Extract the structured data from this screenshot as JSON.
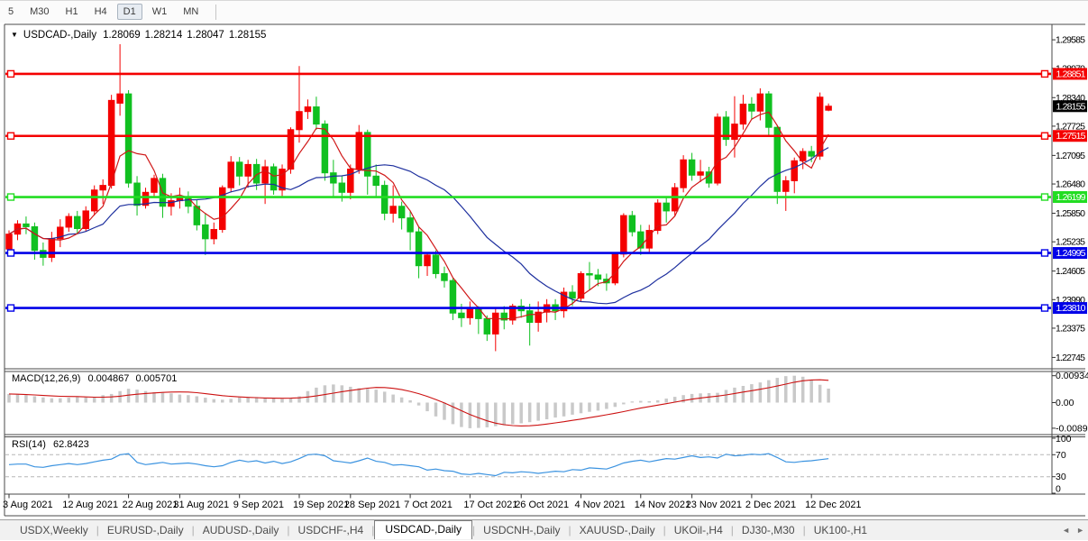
{
  "toolbar": {
    "timeframes": [
      "5",
      "M30",
      "H1",
      "H4",
      "D1",
      "W1",
      "MN"
    ],
    "active_timeframe": "D1"
  },
  "chart_header": {
    "collapse_icon": "▼",
    "symbol_label": "USDCAD-,Daily",
    "open": "1.28069",
    "high": "1.28214",
    "low": "1.28047",
    "close": "1.28155"
  },
  "chart_data": {
    "type": "candlestick",
    "title": "USDCAD-,Daily",
    "price_range": [
      1.2252,
      1.2984
    ],
    "y_axis_ticks": [
      "1.29585",
      "1.28970",
      "1.28340",
      "1.27725",
      "1.27095",
      "1.26480",
      "1.25850",
      "1.25235",
      "1.24605",
      "1.23990",
      "1.23375",
      "1.22745"
    ],
    "current_price": {
      "label": "1.28155",
      "price": 1.28155
    },
    "horizontal_lines": [
      {
        "label": "1.28851",
        "price": 1.28851,
        "color": "#f40000"
      },
      {
        "label": "1.27515",
        "price": 1.27515,
        "color": "#f40000"
      },
      {
        "label": "1.26199",
        "price": 1.26199,
        "color": "#22dd22"
      },
      {
        "label": "1.24995",
        "price": 1.24995,
        "color": "#0202e8"
      },
      {
        "label": "1.23810",
        "price": 1.2381,
        "color": "#0202e8"
      }
    ],
    "x_axis_labels": [
      {
        "label": "3 Aug 2021",
        "i": 0
      },
      {
        "label": "12 Aug 2021",
        "i": 7
      },
      {
        "label": "22 Aug 2021",
        "i": 14
      },
      {
        "label": "31 Aug 2021",
        "i": 20
      },
      {
        "label": "9 Sep 2021",
        "i": 27
      },
      {
        "label": "19 Sep 2021",
        "i": 34
      },
      {
        "label": "28 Sep 2021",
        "i": 40
      },
      {
        "label": "7 Oct 2021",
        "i": 47
      },
      {
        "label": "17 Oct 2021",
        "i": 54
      },
      {
        "label": "26 Oct 2021",
        "i": 60
      },
      {
        "label": "4 Nov 2021",
        "i": 67
      },
      {
        "label": "14 Nov 2021",
        "i": 74
      },
      {
        "label": "23 Nov 2021",
        "i": 80
      },
      {
        "label": "2 Dec 2021",
        "i": 87
      },
      {
        "label": "12 Dec 2021",
        "i": 94
      }
    ],
    "dates": [
      "2021-08-03",
      "2021-08-04",
      "2021-08-05",
      "2021-08-06",
      "2021-08-09",
      "2021-08-10",
      "2021-08-11",
      "2021-08-12",
      "2021-08-13",
      "2021-08-16",
      "2021-08-17",
      "2021-08-18",
      "2021-08-19",
      "2021-08-20",
      "2021-08-23",
      "2021-08-24",
      "2021-08-25",
      "2021-08-26",
      "2021-08-27",
      "2021-08-30",
      "2021-08-31",
      "2021-09-01",
      "2021-09-02",
      "2021-09-03",
      "2021-09-06",
      "2021-09-07",
      "2021-09-08",
      "2021-09-09",
      "2021-09-10",
      "2021-09-13",
      "2021-09-14",
      "2021-09-15",
      "2021-09-16",
      "2021-09-17",
      "2021-09-20",
      "2021-09-21",
      "2021-09-22",
      "2021-09-23",
      "2021-09-24",
      "2021-09-27",
      "2021-09-28",
      "2021-09-29",
      "2021-09-30",
      "2021-10-01",
      "2021-10-04",
      "2021-10-05",
      "2021-10-06",
      "2021-10-07",
      "2021-10-08",
      "2021-10-11",
      "2021-10-12",
      "2021-10-13",
      "2021-10-14",
      "2021-10-15",
      "2021-10-18",
      "2021-10-19",
      "2021-10-20",
      "2021-10-21",
      "2021-10-22",
      "2021-10-25",
      "2021-10-26",
      "2021-10-27",
      "2021-10-28",
      "2021-10-29",
      "2021-11-01",
      "2021-11-02",
      "2021-11-03",
      "2021-11-04",
      "2021-11-05",
      "2021-11-08",
      "2021-11-09",
      "2021-11-10",
      "2021-11-11",
      "2021-11-12",
      "2021-11-15",
      "2021-11-16",
      "2021-11-17",
      "2021-11-18",
      "2021-11-19",
      "2021-11-22",
      "2021-11-23",
      "2021-11-24",
      "2021-11-25",
      "2021-11-26",
      "2021-11-29",
      "2021-11-30",
      "2021-12-01",
      "2021-12-02",
      "2021-12-03",
      "2021-12-06",
      "2021-12-07",
      "2021-12-08",
      "2021-12-09",
      "2021-12-10",
      "2021-12-13",
      "2021-12-14",
      "2021-12-15"
    ],
    "candles": [
      [
        1.2508,
        1.2548,
        1.2493,
        1.254
      ],
      [
        1.254,
        1.257,
        1.2527,
        1.2562
      ],
      [
        1.2562,
        1.2578,
        1.254,
        1.2556
      ],
      [
        1.2556,
        1.2565,
        1.2485,
        1.2505
      ],
      [
        1.2505,
        1.2522,
        1.2472,
        1.249
      ],
      [
        1.249,
        1.2545,
        1.248,
        1.253
      ],
      [
        1.253,
        1.2572,
        1.2512,
        1.2555
      ],
      [
        1.2555,
        1.2585,
        1.2545,
        1.2578
      ],
      [
        1.2578,
        1.259,
        1.254,
        1.2552
      ],
      [
        1.2552,
        1.26,
        1.2546,
        1.259
      ],
      [
        1.259,
        1.2645,
        1.258,
        1.2635
      ],
      [
        1.2635,
        1.2658,
        1.2605,
        1.2645
      ],
      [
        1.2645,
        1.284,
        1.2638,
        1.2828
      ],
      [
        1.2822,
        1.2949,
        1.2795,
        1.2842
      ],
      [
        1.2842,
        1.285,
        1.264,
        1.265
      ],
      [
        1.265,
        1.2665,
        1.258,
        1.2602
      ],
      [
        1.2602,
        1.264,
        1.2595,
        1.263
      ],
      [
        1.263,
        1.2668,
        1.2618,
        1.266
      ],
      [
        1.266,
        1.267,
        1.2575,
        1.26
      ],
      [
        1.26,
        1.2628,
        1.258,
        1.2612
      ],
      [
        1.2612,
        1.264,
        1.2595,
        1.262
      ],
      [
        1.262,
        1.2632,
        1.2585,
        1.26
      ],
      [
        1.26,
        1.2615,
        1.2548,
        1.256
      ],
      [
        1.256,
        1.2585,
        1.2495,
        1.253
      ],
      [
        1.253,
        1.2565,
        1.2518,
        1.255
      ],
      [
        1.255,
        1.2645,
        1.2543,
        1.264
      ],
      [
        1.264,
        1.2708,
        1.263,
        1.2695
      ],
      [
        1.2695,
        1.2706,
        1.2645,
        1.2665
      ],
      [
        1.2665,
        1.27,
        1.264,
        1.269
      ],
      [
        1.269,
        1.2702,
        1.2635,
        1.265
      ],
      [
        1.265,
        1.27,
        1.2605,
        1.2685
      ],
      [
        1.2685,
        1.2692,
        1.2625,
        1.2635
      ],
      [
        1.2635,
        1.269,
        1.2622,
        1.268
      ],
      [
        1.268,
        1.277,
        1.267,
        1.2765
      ],
      [
        1.2765,
        1.2902,
        1.2737,
        1.2804
      ],
      [
        1.2804,
        1.283,
        1.2788,
        1.2814
      ],
      [
        1.2814,
        1.2836,
        1.2765,
        1.2777
      ],
      [
        1.2777,
        1.2785,
        1.2655,
        1.2672
      ],
      [
        1.2672,
        1.27,
        1.262,
        1.265
      ],
      [
        1.265,
        1.2665,
        1.261,
        1.263
      ],
      [
        1.263,
        1.269,
        1.2615,
        1.268
      ],
      [
        1.268,
        1.2775,
        1.267,
        1.2759
      ],
      [
        1.2759,
        1.2765,
        1.2625,
        1.2665
      ],
      [
        1.2665,
        1.269,
        1.262,
        1.2645
      ],
      [
        1.2645,
        1.2655,
        1.257,
        1.2585
      ],
      [
        1.2585,
        1.2645,
        1.2565,
        1.26
      ],
      [
        1.26,
        1.261,
        1.255,
        1.2575
      ],
      [
        1.2575,
        1.259,
        1.2505,
        1.2545
      ],
      [
        1.2545,
        1.2555,
        1.2445,
        1.2472
      ],
      [
        1.2472,
        1.25,
        1.245,
        1.2495
      ],
      [
        1.2495,
        1.2505,
        1.2445,
        1.2455
      ],
      [
        1.2455,
        1.247,
        1.2425,
        1.244
      ],
      [
        1.244,
        1.2445,
        1.2355,
        1.237
      ],
      [
        1.237,
        1.239,
        1.234,
        1.236
      ],
      [
        1.236,
        1.2395,
        1.2345,
        1.2378
      ],
      [
        1.2378,
        1.2385,
        1.2325,
        1.2358
      ],
      [
        1.2358,
        1.2365,
        1.231,
        1.2325
      ],
      [
        1.2325,
        1.238,
        1.2288,
        1.237
      ],
      [
        1.237,
        1.2385,
        1.2335,
        1.2355
      ],
      [
        1.2355,
        1.239,
        1.2345,
        1.2385
      ],
      [
        1.2385,
        1.24,
        1.236,
        1.2375
      ],
      [
        1.2375,
        1.239,
        1.23,
        1.235
      ],
      [
        1.235,
        1.2395,
        1.233,
        1.2372
      ],
      [
        1.2372,
        1.24,
        1.235,
        1.2388
      ],
      [
        1.2388,
        1.24,
        1.2355,
        1.2375
      ],
      [
        1.2375,
        1.2425,
        1.236,
        1.2415
      ],
      [
        1.2415,
        1.243,
        1.2385,
        1.2402
      ],
      [
        1.2402,
        1.246,
        1.2395,
        1.2455
      ],
      [
        1.2455,
        1.248,
        1.242,
        1.2452
      ],
      [
        1.2452,
        1.2465,
        1.2428,
        1.2443
      ],
      [
        1.2443,
        1.2455,
        1.2418,
        1.2435
      ],
      [
        1.2435,
        1.25,
        1.243,
        1.2497
      ],
      [
        1.2497,
        1.2585,
        1.249,
        1.258
      ],
      [
        1.258,
        1.259,
        1.2535,
        1.2545
      ],
      [
        1.2545,
        1.256,
        1.2495,
        1.251
      ],
      [
        1.251,
        1.256,
        1.25,
        1.2548
      ],
      [
        1.2548,
        1.2615,
        1.254,
        1.2607
      ],
      [
        1.2607,
        1.262,
        1.2565,
        1.259
      ],
      [
        1.259,
        1.265,
        1.258,
        1.264
      ],
      [
        1.264,
        1.271,
        1.263,
        1.27
      ],
      [
        1.27,
        1.2715,
        1.2655,
        1.2667
      ],
      [
        1.2667,
        1.27,
        1.2652,
        1.2674
      ],
      [
        1.2674,
        1.2685,
        1.264,
        1.265
      ],
      [
        1.265,
        1.28,
        1.2645,
        1.2792
      ],
      [
        1.2792,
        1.2805,
        1.273,
        1.2744
      ],
      [
        1.2744,
        1.2837,
        1.2705,
        1.2777
      ],
      [
        1.2777,
        1.284,
        1.2765,
        1.282
      ],
      [
        1.282,
        1.2835,
        1.2788,
        1.2805
      ],
      [
        1.2805,
        1.2854,
        1.2785,
        1.2842
      ],
      [
        1.2842,
        1.2848,
        1.2752,
        1.277
      ],
      [
        1.277,
        1.2775,
        1.2605,
        1.2632
      ],
      [
        1.2632,
        1.2665,
        1.259,
        1.2655
      ],
      [
        1.2655,
        1.2705,
        1.2628,
        1.2698
      ],
      [
        1.2698,
        1.2725,
        1.268,
        1.2718
      ],
      [
        1.2718,
        1.273,
        1.2695,
        1.2708
      ],
      [
        1.2708,
        1.2845,
        1.27,
        1.2835
      ],
      [
        1.28069,
        1.28214,
        1.28047,
        1.28155
      ]
    ],
    "ma_fast_window": 5,
    "ma_slow_window": 20,
    "colors": {
      "up": "#f40000",
      "down": "#10c020",
      "ma_fast": "#d01818",
      "ma_slow": "#1d2f9e",
      "macd_bar": "#c9c9c9",
      "macd_signal": "#cc1111",
      "rsi_line": "#3b93e0",
      "current_label_bg": "#000000",
      "axis_text": "#000000"
    },
    "macd": {
      "label": "MACD(12,26,9)",
      "main_value": "0.004867",
      "signal_value": "0.005701",
      "axis_labels": [
        {
          "label": "0.009345",
          "v": 0.009345
        },
        {
          "label": "0.00",
          "v": 0
        },
        {
          "label": "-0.008905",
          "v": -0.008905
        }
      ],
      "range": [
        -0.0105,
        0.0105
      ],
      "signal_window": 9,
      "histogram": [
        0.003,
        0.0028,
        0.0026,
        0.0022,
        0.0018,
        0.0015,
        0.0015,
        0.0017,
        0.0019,
        0.0018,
        0.002,
        0.0026,
        0.003,
        0.004,
        0.0048,
        0.0045,
        0.004,
        0.0036,
        0.0034,
        0.0032,
        0.0028,
        0.0026,
        0.0022,
        0.0017,
        0.0012,
        0.001,
        0.0013,
        0.0018,
        0.0018,
        0.0019,
        0.0016,
        0.0016,
        0.0013,
        0.0014,
        0.0022,
        0.004,
        0.0052,
        0.006,
        0.0063,
        0.006,
        0.0055,
        0.005,
        0.0048,
        0.0045,
        0.0038,
        0.0028,
        0.0018,
        0.0008,
        -0.001,
        -0.003,
        -0.0048,
        -0.006,
        -0.0075,
        -0.0085,
        -0.0089,
        -0.0088,
        -0.0086,
        -0.0082,
        -0.0079,
        -0.0075,
        -0.0072,
        -0.0068,
        -0.0063,
        -0.0058,
        -0.0052,
        -0.0048,
        -0.0042,
        -0.0037,
        -0.0032,
        -0.0028,
        -0.0022,
        -0.0015,
        -0.0006,
        0.0004,
        0.0006,
        0.0005,
        0.0008,
        0.0014,
        0.002,
        0.0026,
        0.003,
        0.0032,
        0.0033,
        0.0034,
        0.0044,
        0.0052,
        0.0058,
        0.0064,
        0.007,
        0.0078,
        0.0086,
        0.0092,
        0.009345,
        0.009,
        0.0078,
        0.0062,
        0.004867
      ]
    },
    "rsi": {
      "label": "RSI(14)",
      "value": "62.8423",
      "axis_labels": [
        {
          "label": "100",
          "v": 100
        },
        {
          "label": "70",
          "v": 70
        },
        {
          "label": "30",
          "v": 30
        },
        {
          "label": "0",
          "v": 0
        }
      ],
      "levels": [
        70,
        30
      ],
      "range": [
        0,
        100
      ],
      "values": [
        52,
        53,
        53,
        48,
        47,
        50,
        52,
        54,
        52,
        54,
        57,
        60,
        62,
        70,
        72,
        56,
        52,
        54,
        56,
        53,
        54,
        55,
        53,
        50,
        48,
        50,
        56,
        60,
        57,
        59,
        55,
        58,
        54,
        57,
        63,
        70,
        71,
        68,
        59,
        57,
        55,
        59,
        64,
        58,
        56,
        51,
        52,
        50,
        48,
        42,
        44,
        41,
        40,
        35,
        34,
        36,
        34,
        32,
        38,
        37,
        39,
        38,
        36,
        38,
        40,
        39,
        43,
        42,
        46,
        45,
        44,
        49,
        55,
        58,
        60,
        57,
        60,
        63,
        62,
        65,
        68,
        65,
        66,
        64,
        71,
        68,
        69,
        71,
        70,
        72,
        65,
        57,
        56,
        58,
        59,
        61,
        62.84
      ]
    }
  },
  "tabs": {
    "items": [
      "USDX,Weekly",
      "EURUSD-,Daily",
      "AUDUSD-,Daily",
      "USDCHF-,H4",
      "USDCAD-,Daily",
      "USDCNH-,Daily",
      "XAUUSD-,Daily",
      "UKOil-,H4",
      "DJ30-,M30",
      "UK100-,H1"
    ],
    "active": "USDCAD-,Daily",
    "scroll_left_icon": "◄",
    "scroll_right_icon": "►"
  }
}
